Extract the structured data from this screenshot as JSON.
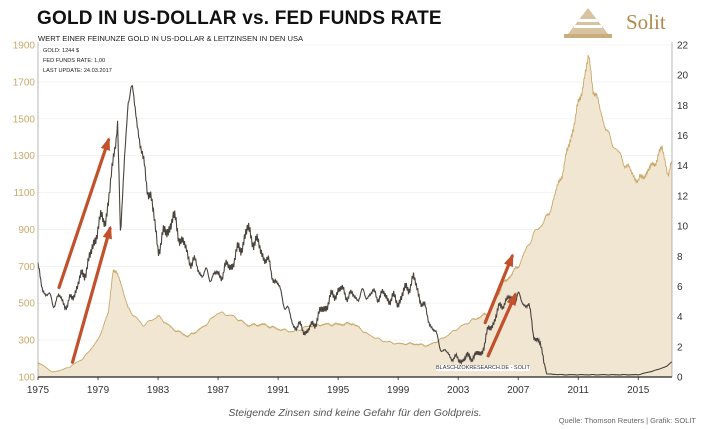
{
  "header": {
    "title": "GOLD IN US-DOLLAR vs. FED FUNDS RATE",
    "subtitle": "WERT EINER FEINUNZE GOLD IN US-DOLLAR & LEITZINSEN IN DEN USA",
    "brand": "Solit"
  },
  "info_box": {
    "gold": "GOLD: 1244 $",
    "fed": "FED FUNDS RATE: 1,00",
    "update": "LAST UPDATE: 24.03.2017"
  },
  "watermark": "BLASCHZOKRESEARCH.DE  -  SOLIT",
  "caption": "Steigende Zinsen sind keine Gefahr für den Goldpreis.",
  "source": "Quelle: Thomson Reuters | Grafik: SOLIT",
  "colors": {
    "gold_line": "#c9a96a",
    "gold_fill": "#f1e6d2",
    "fed_line": "#4a443e",
    "arrow": "#c2502a",
    "axis_text": "#c9a96a"
  },
  "chart_data": {
    "type": "line",
    "x_ticks": [
      "1975",
      "1979",
      "1983",
      "1987",
      "1991",
      "1995",
      "1999",
      "2003",
      "2007",
      "2011",
      "2015"
    ],
    "x_range": [
      1975,
      2017.25
    ],
    "y_left": {
      "label": "",
      "range": [
        100,
        1900
      ],
      "ticks": [
        "100",
        "300",
        "500",
        "700",
        "900",
        "1100",
        "1300",
        "1500",
        "1700",
        "1900"
      ]
    },
    "y_right": {
      "label": "",
      "range": [
        0,
        22
      ],
      "ticks": [
        "0",
        "2",
        "4",
        "6",
        "8",
        "10",
        "12",
        "14",
        "16",
        "18",
        "20",
        "22"
      ]
    },
    "series": [
      {
        "axis": "right",
        "points": [
          [
            1975,
            7.0
          ],
          [
            1975.5,
            5.5
          ],
          [
            1976,
            5.0
          ],
          [
            1976.5,
            5.2
          ],
          [
            1977,
            4.7
          ],
          [
            1977.5,
            5.8
          ],
          [
            1978,
            6.8
          ],
          [
            1978.5,
            7.9
          ],
          [
            1979,
            10.1
          ],
          [
            1979.5,
            10.5
          ],
          [
            1980,
            13.8
          ],
          [
            1980.3,
            17.6
          ],
          [
            1980.5,
            9.0
          ],
          [
            1980.8,
            15.0
          ],
          [
            1981,
            19.0
          ],
          [
            1981.5,
            18.0
          ],
          [
            1982,
            14.0
          ],
          [
            1982.5,
            12.0
          ],
          [
            1983,
            8.6
          ],
          [
            1984,
            10.5
          ],
          [
            1985,
            8.0
          ],
          [
            1986,
            6.8
          ],
          [
            1987,
            6.7
          ],
          [
            1988,
            7.6
          ],
          [
            1989,
            9.7
          ],
          [
            1990,
            8.2
          ],
          [
            1991,
            6.0
          ],
          [
            1992,
            3.5
          ],
          [
            1993,
            3.0
          ],
          [
            1994,
            4.5
          ],
          [
            1995,
            5.8
          ],
          [
            1996,
            5.3
          ],
          [
            1997,
            5.5
          ],
          [
            1998,
            5.4
          ],
          [
            1999,
            5.0
          ],
          [
            2000,
            6.5
          ],
          [
            2001,
            3.9
          ],
          [
            2002,
            1.7
          ],
          [
            2003,
            1.1
          ],
          [
            2004,
            1.4
          ],
          [
            2004.5,
            1.5
          ],
          [
            2005,
            3.0
          ],
          [
            2006,
            5.0
          ],
          [
            2007,
            5.25
          ],
          [
            2007.7,
            4.7
          ],
          [
            2008,
            3.0
          ],
          [
            2008.5,
            2.0
          ],
          [
            2008.9,
            0.2
          ],
          [
            2010,
            0.15
          ],
          [
            2012,
            0.15
          ],
          [
            2015,
            0.15
          ],
          [
            2016,
            0.4
          ],
          [
            2016.9,
            0.7
          ],
          [
            2017.2,
            1.0
          ]
        ]
      },
      {
        "axis": "left",
        "points": [
          [
            1975,
            180
          ],
          [
            1976,
            125
          ],
          [
            1977,
            150
          ],
          [
            1978,
            200
          ],
          [
            1979,
            300
          ],
          [
            1979.7,
            450
          ],
          [
            1980,
            690
          ],
          [
            1980.5,
            620
          ],
          [
            1981,
            470
          ],
          [
            1982,
            380
          ],
          [
            1983,
            430
          ],
          [
            1984,
            360
          ],
          [
            1985,
            320
          ],
          [
            1986,
            370
          ],
          [
            1987,
            450
          ],
          [
            1988,
            430
          ],
          [
            1989,
            380
          ],
          [
            1990,
            385
          ],
          [
            1991,
            360
          ],
          [
            1992,
            345
          ],
          [
            1993,
            375
          ],
          [
            1994,
            385
          ],
          [
            1995,
            385
          ],
          [
            1996,
            390
          ],
          [
            1997,
            330
          ],
          [
            1998,
            295
          ],
          [
            1999,
            280
          ],
          [
            2000,
            280
          ],
          [
            2001,
            270
          ],
          [
            2002,
            310
          ],
          [
            2003,
            365
          ],
          [
            2004,
            410
          ],
          [
            2005,
            445
          ],
          [
            2006,
            605
          ],
          [
            2007,
            700
          ],
          [
            2008,
            870
          ],
          [
            2009,
            975
          ],
          [
            2010,
            1225
          ],
          [
            2011,
            1570
          ],
          [
            2011.7,
            1830
          ],
          [
            2012,
            1670
          ],
          [
            2013,
            1410
          ],
          [
            2014,
            1270
          ],
          [
            2015,
            1160
          ],
          [
            2016,
            1250
          ],
          [
            2016.6,
            1340
          ],
          [
            2017,
            1200
          ],
          [
            2017.2,
            1244
          ]
        ]
      }
    ]
  }
}
